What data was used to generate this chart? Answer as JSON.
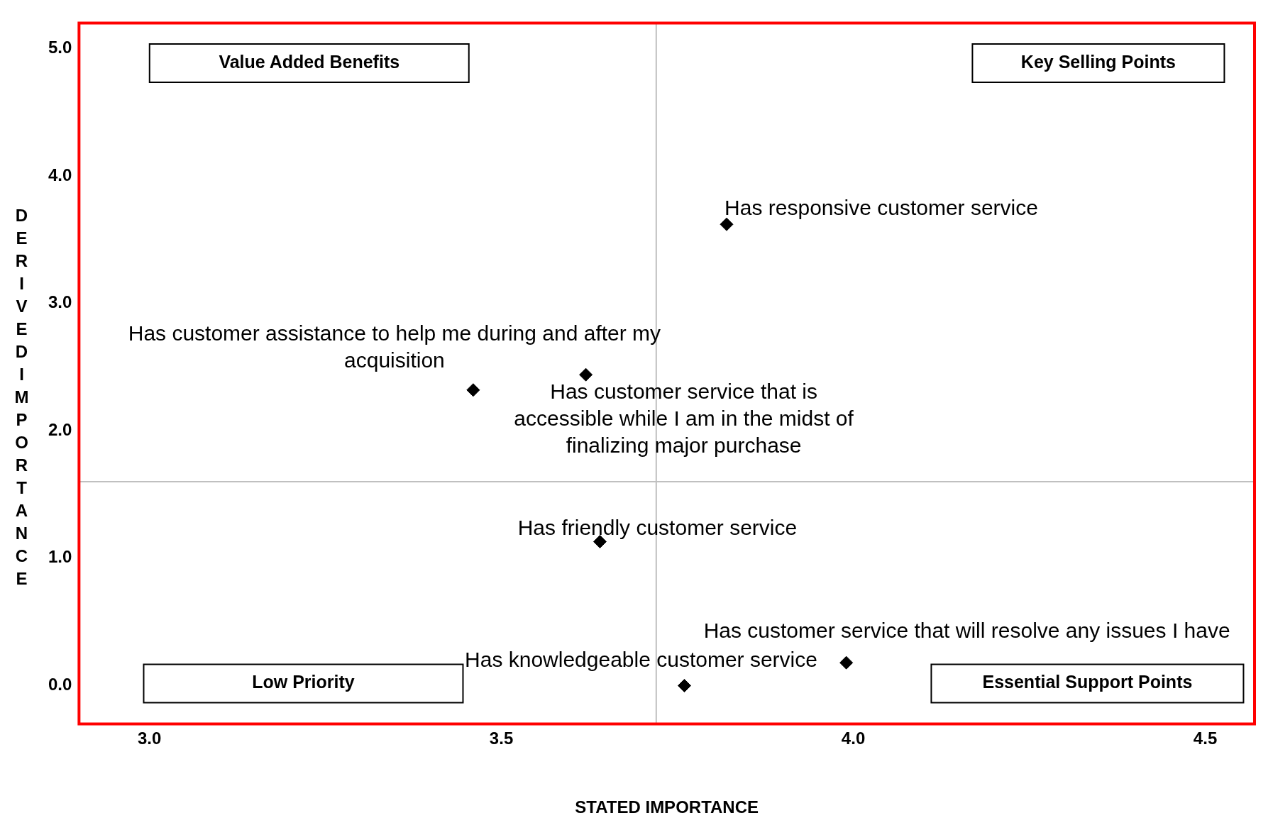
{
  "chart_data": {
    "type": "scatter",
    "xlabel": "STATED IMPORTANCE",
    "ylabel": "DERIVED IMPORTANCE",
    "xlim": [
      2.9,
      4.57
    ],
    "ylim": [
      -0.3,
      5.2
    ],
    "xticks": [
      {
        "value": 3,
        "label": "3.0"
      },
      {
        "value": 3.5,
        "label": "3.5"
      },
      {
        "value": 4,
        "label": "4.0"
      },
      {
        "value": 4.5,
        "label": "4.5"
      }
    ],
    "yticks": [
      {
        "value": 0,
        "label": "0.0"
      },
      {
        "value": 1,
        "label": "1.0"
      },
      {
        "value": 2,
        "label": "2.0"
      },
      {
        "value": 3,
        "label": "3.0"
      },
      {
        "value": 4,
        "label": "4.0"
      },
      {
        "value": 5,
        "label": "5.0"
      }
    ],
    "series": [
      {
        "color": "#000000",
        "x": [
          3.82,
          3.46,
          3.62,
          3.64,
          3.99,
          3.76
        ],
        "values": [
          3.62,
          2.32,
          2.44,
          1.13,
          0.18,
          0.0
        ],
        "value_labels": [
          "Has responsive customer service",
          "Has customer assistance to help me during and after my acquisition",
          "Has customer service that is accessible while I am in the midst of finalizing major purchase",
          "Has friendly customer service",
          "Has customer service that will resolve any issues I have",
          "Has knowledgeable customer service"
        ]
      }
    ],
    "ref_lines": [
      {
        "axis": "x",
        "value": 3.72,
        "color": "#c0c0c0"
      },
      {
        "axis": "y",
        "value": 1.6,
        "color": "#c0c0c0"
      }
    ],
    "annotations": [
      "Value Added Benefits",
      "Key Selling Points",
      "Low Priority",
      "Essential Support Points"
    ],
    "marker": "diamond",
    "grid": false,
    "legend": false
  }
}
